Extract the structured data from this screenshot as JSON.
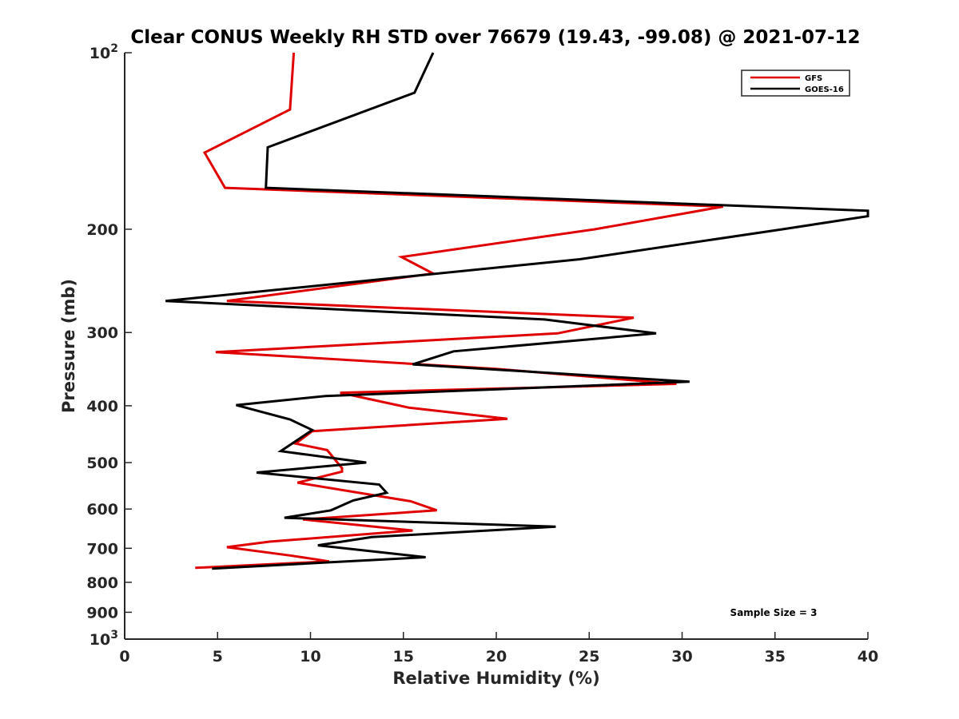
{
  "chart_data": {
    "type": "line",
    "title": "Clear CONUS Weekly RH STD over 76679 (19.43, -99.08) @ 2021-07-12",
    "xlabel": "Relative Humidity (%)",
    "ylabel": "Pressure (mb)",
    "xlim": [
      0,
      40
    ],
    "ylim": [
      100,
      1000
    ],
    "y_scale": "log",
    "y_reversed": true,
    "grid": false,
    "legend_position": "top-right",
    "x_ticks": [
      0,
      5,
      10,
      15,
      20,
      25,
      30,
      35,
      40
    ],
    "y_ticks": [
      {
        "value": 100,
        "label": "10",
        "sup": "2"
      },
      {
        "value": 200,
        "label": "200"
      },
      {
        "value": 300,
        "label": "300"
      },
      {
        "value": 400,
        "label": "400"
      },
      {
        "value": 500,
        "label": "500"
      },
      {
        "value": 600,
        "label": "600"
      },
      {
        "value": 700,
        "label": "700"
      },
      {
        "value": 800,
        "label": "800"
      },
      {
        "value": 900,
        "label": "900"
      },
      {
        "value": 1000,
        "label": "10",
        "sup": "3"
      }
    ],
    "series": [
      {
        "name": "GFS",
        "color": "#e00000",
        "points": [
          [
            9.1,
            100
          ],
          [
            8.9,
            125
          ],
          [
            4.3,
            148
          ],
          [
            5.4,
            170
          ],
          [
            32.2,
            183
          ],
          [
            25.3,
            200
          ],
          [
            14.9,
            223
          ],
          [
            16.6,
            238
          ],
          [
            5.5,
            265
          ],
          [
            27.4,
            283
          ],
          [
            23.3,
            301
          ],
          [
            4.9,
            324
          ],
          [
            20.0,
            346
          ],
          [
            29.7,
            367
          ],
          [
            11.6,
            380
          ],
          [
            15.3,
            403
          ],
          [
            20.6,
            421
          ],
          [
            10.1,
            442
          ],
          [
            9.2,
            464
          ],
          [
            10.9,
            476
          ],
          [
            11.7,
            511
          ],
          [
            11.7,
            518
          ],
          [
            9.3,
            541
          ],
          [
            15.4,
            582
          ],
          [
            16.8,
            603
          ],
          [
            9.6,
            625
          ],
          [
            15.5,
            653
          ],
          [
            7.8,
            682
          ],
          [
            5.5,
            697
          ],
          [
            8.9,
            720
          ],
          [
            11.0,
            737
          ],
          [
            3.8,
            756
          ]
        ]
      },
      {
        "name": "GOES-16",
        "color": "#000000",
        "points": [
          [
            16.6,
            100
          ],
          [
            15.6,
            117
          ],
          [
            7.7,
            145
          ],
          [
            7.6,
            170
          ],
          [
            40.0,
            186
          ],
          [
            40.0,
            190
          ],
          [
            35.4,
            200
          ],
          [
            24.5,
            225
          ],
          [
            2.2,
            265
          ],
          [
            22.6,
            285
          ],
          [
            28.6,
            301
          ],
          [
            17.7,
            323
          ],
          [
            15.5,
            340
          ],
          [
            30.4,
            364
          ],
          [
            10.8,
            385
          ],
          [
            6.0,
            399
          ],
          [
            8.9,
            422
          ],
          [
            10.1,
            440
          ],
          [
            8.4,
            478
          ],
          [
            13.0,
            500
          ],
          [
            7.1,
            520
          ],
          [
            13.7,
            545
          ],
          [
            14.1,
            563
          ],
          [
            12.3,
            580
          ],
          [
            11.1,
            603
          ],
          [
            8.6,
            621
          ],
          [
            23.2,
            643
          ],
          [
            13.3,
            670
          ],
          [
            10.4,
            692
          ],
          [
            16.2,
            725
          ],
          [
            4.7,
            758
          ]
        ]
      }
    ],
    "annotations": [
      "Sample Size = 3"
    ]
  }
}
